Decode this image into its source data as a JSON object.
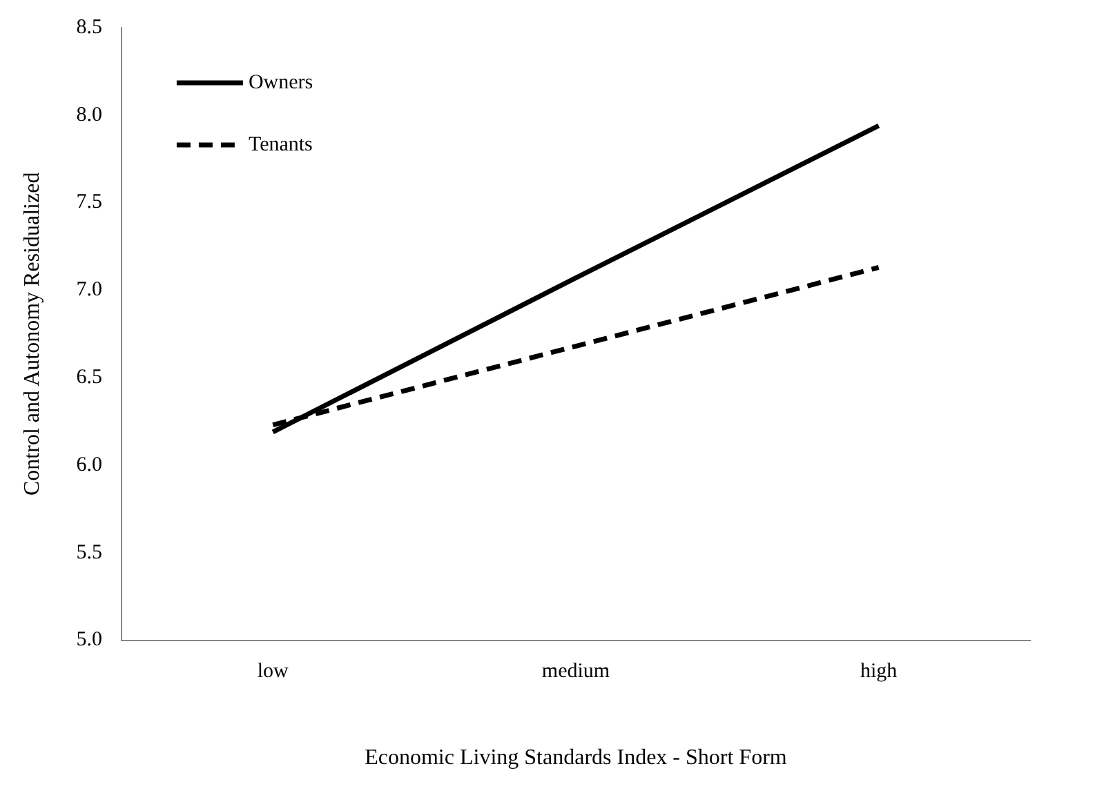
{
  "chart_data": {
    "type": "line",
    "xlabel": "Economic Living Standards Index - Short Form",
    "ylabel": "Control and Autonomy Residualized",
    "categories": [
      "low",
      "medium",
      "high"
    ],
    "series": [
      {
        "name": "Owners",
        "color": "#000000",
        "values": [
          6.19,
          7.07,
          7.94
        ],
        "line_style": "solid"
      },
      {
        "name": "Tenants",
        "color": "#000000",
        "values": [
          6.23,
          6.68,
          7.13
        ],
        "line_style": "dashed"
      }
    ],
    "ylim": [
      5,
      8.5
    ],
    "yticks": [
      {
        "value": 5,
        "label": "5.0"
      },
      {
        "value": 5.5,
        "label": "5.5"
      },
      {
        "value": 6,
        "label": "6.0"
      },
      {
        "value": 6.5,
        "label": "6.5"
      },
      {
        "value": 7,
        "label": "7.0"
      },
      {
        "value": 7.5,
        "label": "7.5"
      },
      {
        "value": 8,
        "label": "8.0"
      },
      {
        "value": 8.5,
        "label": "8.5"
      }
    ],
    "grid": false,
    "legend": "top left",
    "marker": "none"
  }
}
